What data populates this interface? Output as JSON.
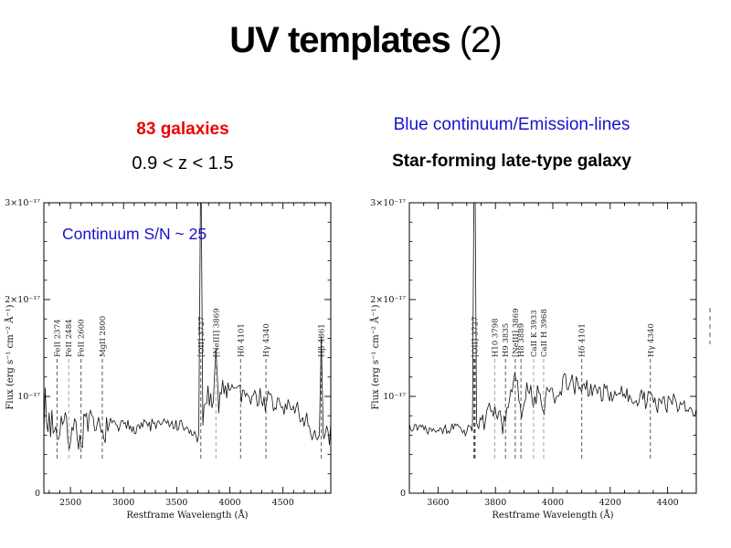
{
  "slide": {
    "title_main": "UV templates",
    "title_suffix": " (2)"
  },
  "left_header": {
    "line1": "83 galaxies",
    "line1_color": "#ee0000",
    "line2": "0.9 < z < 1.5"
  },
  "right_header": {
    "line1": "Blue continuum/Emission-lines",
    "line1_color": "#1414cc",
    "line2": "Star-forming late-type galaxy"
  },
  "chart_data": [
    {
      "type": "line",
      "title": "",
      "annotation": "Continuum S/N ~ 25",
      "annotation_color": "#1414cc",
      "xlabel": "Restframe Wavelength (Å)",
      "ylabel": "Flux (erg s⁻¹ cm⁻² Å⁻¹)",
      "xlim": [
        2250,
        4950
      ],
      "xticks": [
        2500,
        3000,
        3500,
        4000,
        4500
      ],
      "x_minor_step": 100,
      "ylim": [
        0,
        3e-17
      ],
      "yticks": [
        {
          "value": 0,
          "label": "0"
        },
        {
          "value": 1,
          "label": "10⁻¹⁷"
        },
        {
          "value": 2,
          "label": "2×10⁻¹⁷"
        },
        {
          "value": 3,
          "label": "3×10⁻¹⁷"
        }
      ],
      "grid": false,
      "spectral_lines": [
        {
          "label": "FeII 2374",
          "wavelength": 2374,
          "muted": false
        },
        {
          "label": "FeII 2484",
          "wavelength": 2484,
          "muted": true
        },
        {
          "label": "FeII 2600",
          "wavelength": 2600,
          "muted": false
        },
        {
          "label": "MgII 2800",
          "wavelength": 2800,
          "muted": false
        },
        {
          "label": "[OII] 3727",
          "wavelength": 3727,
          "muted": false
        },
        {
          "label": "[NeIII] 3869",
          "wavelength": 3869,
          "muted": true
        },
        {
          "label": "Hδ 4101",
          "wavelength": 4101,
          "muted": false
        },
        {
          "label": "Hγ 4340",
          "wavelength": 4340,
          "muted": false
        },
        {
          "label": "Hβ 4861",
          "wavelength": 4861,
          "muted": false
        }
      ],
      "emission_spikes": [
        {
          "wavelength": 3727,
          "peak_1e17": 3.6
        },
        {
          "wavelength": 3869,
          "peak_1e17": 1.5
        },
        {
          "wavelength": 4861,
          "peak_1e17": 1.62
        }
      ],
      "continuum_1e17": [
        [
          2250,
          0.95
        ],
        [
          2280,
          0.72
        ],
        [
          2330,
          0.78
        ],
        [
          2360,
          0.65
        ],
        [
          2374,
          0.5
        ],
        [
          2390,
          0.75
        ],
        [
          2420,
          0.72
        ],
        [
          2460,
          0.68
        ],
        [
          2484,
          0.52
        ],
        [
          2510,
          0.72
        ],
        [
          2550,
          0.66
        ],
        [
          2580,
          0.6
        ],
        [
          2600,
          0.5
        ],
        [
          2630,
          0.72
        ],
        [
          2680,
          0.7
        ],
        [
          2730,
          0.68
        ],
        [
          2770,
          0.66
        ],
        [
          2800,
          0.6
        ],
        [
          2840,
          0.68
        ],
        [
          2900,
          0.7
        ],
        [
          3000,
          0.68
        ],
        [
          3100,
          0.7
        ],
        [
          3200,
          0.71
        ],
        [
          3300,
          0.7
        ],
        [
          3350,
          0.72
        ],
        [
          3450,
          0.7
        ],
        [
          3550,
          0.68
        ],
        [
          3620,
          0.63
        ],
        [
          3680,
          0.58
        ],
        [
          3710,
          0.62
        ],
        [
          3745,
          0.72
        ],
        [
          3770,
          0.85
        ],
        [
          3790,
          1.05
        ],
        [
          3810,
          0.85
        ],
        [
          3830,
          0.9
        ],
        [
          3869,
          1.05
        ],
        [
          3890,
          0.95
        ],
        [
          3920,
          1.05
        ],
        [
          3950,
          1.12
        ],
        [
          3980,
          1.05
        ],
        [
          4010,
          1.15
        ],
        [
          4040,
          1.08
        ],
        [
          4070,
          1.12
        ],
        [
          4101,
          1.02
        ],
        [
          4140,
          1.08
        ],
        [
          4180,
          1.0
        ],
        [
          4220,
          1.02
        ],
        [
          4260,
          0.95
        ],
        [
          4300,
          1.02
        ],
        [
          4340,
          0.92
        ],
        [
          4380,
          0.95
        ],
        [
          4420,
          0.88
        ],
        [
          4460,
          0.96
        ],
        [
          4500,
          0.85
        ],
        [
          4540,
          0.92
        ],
        [
          4580,
          0.85
        ],
        [
          4620,
          0.88
        ],
        [
          4660,
          0.8
        ],
        [
          4700,
          0.78
        ],
        [
          4740,
          0.72
        ],
        [
          4780,
          0.6
        ],
        [
          4820,
          0.48
        ],
        [
          4850,
          0.6
        ],
        [
          4880,
          0.5
        ],
        [
          4920,
          0.55
        ],
        [
          4950,
          0.68
        ]
      ],
      "noise_1e17": [
        [
          2250,
          0.2
        ],
        [
          2400,
          0.13
        ],
        [
          2700,
          0.11
        ],
        [
          2900,
          0.06
        ],
        [
          3600,
          0.05
        ],
        [
          3720,
          0.07
        ],
        [
          3780,
          0.1
        ],
        [
          4200,
          0.09
        ],
        [
          4700,
          0.1
        ],
        [
          4950,
          0.12
        ]
      ],
      "seed": 7,
      "edge_marker_outside_frame": false
    },
    {
      "type": "line",
      "title": "",
      "annotation": "",
      "annotation_color": "#1414cc",
      "xlabel": "Restframe Wavelength (Å)",
      "ylabel": "Flux (erg s⁻¹ cm⁻² Å⁻¹)",
      "xlim": [
        3500,
        4500
      ],
      "xticks": [
        3600,
        3800,
        4000,
        4200,
        4400
      ],
      "x_minor_step": 50,
      "ylim": [
        0,
        3e-17
      ],
      "yticks": [
        {
          "value": 0,
          "label": "0"
        },
        {
          "value": 1,
          "label": "10⁻¹⁷"
        },
        {
          "value": 2,
          "label": "2×10⁻¹⁷"
        },
        {
          "value": 3,
          "label": "3×10⁻¹⁷"
        }
      ],
      "grid": false,
      "spectral_lines": [
        {
          "label": "[OII] 3727",
          "wavelength": 3727,
          "muted": false,
          "bold": true
        },
        {
          "label": "H10 3798",
          "wavelength": 3798,
          "muted": true
        },
        {
          "label": "H9 3835",
          "wavelength": 3835,
          "muted": false
        },
        {
          "label": "[NeIII] 3869",
          "wavelength": 3869,
          "muted": false
        },
        {
          "label": "H8 3889",
          "wavelength": 3889,
          "muted": false
        },
        {
          "label": "CaII K 3933",
          "wavelength": 3933,
          "muted": true
        },
        {
          "label": "CaII H 3968",
          "wavelength": 3968,
          "muted": true
        },
        {
          "label": "Hδ 4101",
          "wavelength": 4101,
          "muted": false
        },
        {
          "label": "Hγ 4340",
          "wavelength": 4340,
          "muted": false
        }
      ],
      "emission_spikes": [
        {
          "wavelength": 3727,
          "peak_1e17": 4.2
        }
      ],
      "continuum_1e17": [
        [
          3500,
          0.72
        ],
        [
          3520,
          0.68
        ],
        [
          3545,
          0.7
        ],
        [
          3570,
          0.66
        ],
        [
          3600,
          0.68
        ],
        [
          3630,
          0.65
        ],
        [
          3660,
          0.68
        ],
        [
          3680,
          0.66
        ],
        [
          3700,
          0.64
        ],
        [
          3712,
          0.68
        ],
        [
          3738,
          0.72
        ],
        [
          3755,
          0.74
        ],
        [
          3775,
          0.82
        ],
        [
          3798,
          0.92
        ],
        [
          3810,
          0.8
        ],
        [
          3822,
          0.68
        ],
        [
          3835,
          0.78
        ],
        [
          3850,
          0.95
        ],
        [
          3860,
          1.1
        ],
        [
          3869,
          1.25
        ],
        [
          3878,
          1.05
        ],
        [
          3889,
          0.78
        ],
        [
          3900,
          0.95
        ],
        [
          3912,
          1.08
        ],
        [
          3925,
          1.0
        ],
        [
          3933,
          0.92
        ],
        [
          3945,
          1.06
        ],
        [
          3957,
          1.0
        ],
        [
          3968,
          0.84
        ],
        [
          3980,
          1.02
        ],
        [
          3995,
          1.1
        ],
        [
          4010,
          1.0
        ],
        [
          4025,
          1.08
        ],
        [
          4040,
          1.12
        ],
        [
          4060,
          1.18
        ],
        [
          4075,
          1.08
        ],
        [
          4090,
          1.12
        ],
        [
          4101,
          1.05
        ],
        [
          4115,
          1.12
        ],
        [
          4130,
          1.05
        ],
        [
          4150,
          1.1
        ],
        [
          4170,
          1.02
        ],
        [
          4190,
          1.08
        ],
        [
          4210,
          1.0
        ],
        [
          4230,
          1.05
        ],
        [
          4250,
          0.98
        ],
        [
          4270,
          1.0
        ],
        [
          4290,
          0.95
        ],
        [
          4310,
          1.0
        ],
        [
          4330,
          0.98
        ],
        [
          4340,
          1.06
        ],
        [
          4355,
          0.92
        ],
        [
          4375,
          0.96
        ],
        [
          4395,
          0.9
        ],
        [
          4415,
          0.96
        ],
        [
          4435,
          0.88
        ],
        [
          4455,
          0.92
        ],
        [
          4475,
          0.85
        ],
        [
          4500,
          0.88
        ]
      ],
      "noise_1e17": [
        [
          3500,
          0.035
        ],
        [
          3705,
          0.035
        ],
        [
          3730,
          0.07
        ],
        [
          4500,
          0.07
        ]
      ],
      "seed": 13,
      "edge_marker_outside_frame": true
    }
  ]
}
